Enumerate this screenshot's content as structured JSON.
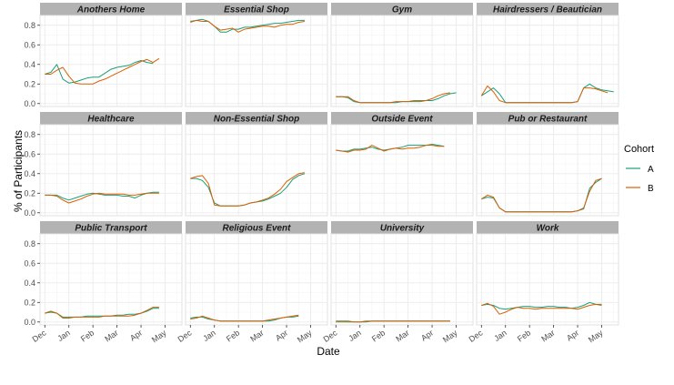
{
  "chart_data": {
    "type": "line",
    "xlabel": "Date",
    "ylabel": "% of Participants",
    "ylim": [
      -0.03,
      0.9
    ],
    "y_ticks": [
      "0.0",
      "0.2",
      "0.4",
      "0.6",
      "0.8"
    ],
    "y_tick_values": [
      0,
      0.2,
      0.4,
      0.6,
      0.8
    ],
    "x_ticks": [
      "Dec",
      "Jan",
      "Feb",
      "Mar",
      "Apr",
      "May"
    ],
    "x_tick_values": [
      0,
      1,
      2,
      3,
      4,
      5
    ],
    "xlim": [
      -0.2,
      5.7
    ],
    "grid": true,
    "legend": {
      "title": "Cohort",
      "position": "right",
      "entries": [
        {
          "name": "A",
          "color": "#1b9e77"
        },
        {
          "name": "B",
          "color": "#d95f02"
        }
      ]
    },
    "x": [
      0,
      0.25,
      0.5,
      0.75,
      1,
      1.25,
      1.5,
      1.75,
      2,
      2.25,
      2.5,
      2.75,
      3,
      3.25,
      3.5,
      3.75,
      4,
      4.25,
      4.5,
      4.75,
      5,
      5.25,
      5.5
    ],
    "panels": [
      {
        "title": "Anothers Home",
        "series": [
          {
            "name": "A",
            "values": [
              0.3,
              0.32,
              0.4,
              0.25,
              0.21,
              0.22,
              0.24,
              0.26,
              0.27,
              0.27,
              0.31,
              0.35,
              0.37,
              0.38,
              0.39,
              0.42,
              0.44,
              0.42,
              0.41
            ]
          },
          {
            "name": "B",
            "values": [
              0.3,
              0.3,
              0.34,
              0.37,
              0.28,
              0.21,
              0.2,
              0.2,
              0.2,
              0.23,
              0.25,
              0.28,
              0.31,
              0.34,
              0.37,
              0.4,
              0.43,
              0.45,
              0.42,
              0.46
            ]
          }
        ]
      },
      {
        "title": "Essential Shop",
        "series": [
          {
            "name": "A",
            "values": [
              0.84,
              0.85,
              0.86,
              0.84,
              0.79,
              0.73,
              0.73,
              0.76,
              0.76,
              0.78,
              0.78,
              0.79,
              0.8,
              0.81,
              0.82,
              0.82,
              0.83,
              0.84,
              0.85,
              0.85
            ]
          },
          {
            "name": "B",
            "values": [
              0.83,
              0.85,
              0.84,
              0.84,
              0.79,
              0.75,
              0.76,
              0.77,
              0.73,
              0.76,
              0.77,
              0.78,
              0.79,
              0.79,
              0.78,
              0.8,
              0.81,
              0.81,
              0.83,
              0.84
            ]
          }
        ]
      },
      {
        "title": "Gym",
        "series": [
          {
            "name": "A",
            "values": [
              0.07,
              0.07,
              0.06,
              0.02,
              0.01,
              0.01,
              0.01,
              0.01,
              0.01,
              0.01,
              0.01,
              0.02,
              0.02,
              0.02,
              0.02,
              0.03,
              0.03,
              0.05,
              0.08,
              0.1,
              0.11
            ]
          },
          {
            "name": "B",
            "values": [
              0.07,
              0.07,
              0.07,
              0.03,
              0.01,
              0.01,
              0.01,
              0.01,
              0.01,
              0.01,
              0.02,
              0.02,
              0.02,
              0.03,
              0.03,
              0.03,
              0.05,
              0.08,
              0.1,
              0.11
            ]
          }
        ]
      },
      {
        "title": "Hairdressers / Beautician",
        "series": [
          {
            "name": "A",
            "values": [
              0.08,
              0.12,
              0.16,
              0.1,
              0.01,
              0.01,
              0.01,
              0.01,
              0.01,
              0.01,
              0.01,
              0.01,
              0.01,
              0.01,
              0.01,
              0.01,
              0.02,
              0.16,
              0.2,
              0.16,
              0.14,
              0.13,
              0.12
            ]
          },
          {
            "name": "B",
            "values": [
              0.08,
              0.18,
              0.12,
              0.03,
              0.01,
              0.01,
              0.01,
              0.01,
              0.01,
              0.01,
              0.01,
              0.01,
              0.01,
              0.01,
              0.01,
              0.01,
              0.02,
              0.16,
              0.16,
              0.15,
              0.13,
              0.11
            ]
          }
        ]
      },
      {
        "title": "Healthcare",
        "series": [
          {
            "name": "A",
            "values": [
              0.18,
              0.18,
              0.18,
              0.15,
              0.13,
              0.15,
              0.17,
              0.19,
              0.2,
              0.19,
              0.18,
              0.18,
              0.18,
              0.17,
              0.17,
              0.15,
              0.18,
              0.2,
              0.21,
              0.21
            ]
          },
          {
            "name": "B",
            "values": [
              0.18,
              0.18,
              0.17,
              0.13,
              0.1,
              0.12,
              0.14,
              0.17,
              0.19,
              0.2,
              0.19,
              0.19,
              0.19,
              0.19,
              0.18,
              0.18,
              0.19,
              0.2,
              0.2,
              0.2
            ]
          }
        ]
      },
      {
        "title": "Non-Essential Shop",
        "series": [
          {
            "name": "A",
            "values": [
              0.35,
              0.35,
              0.33,
              0.26,
              0.1,
              0.07,
              0.07,
              0.07,
              0.07,
              0.08,
              0.1,
              0.11,
              0.12,
              0.14,
              0.17,
              0.2,
              0.26,
              0.34,
              0.38,
              0.4
            ]
          },
          {
            "name": "B",
            "values": [
              0.35,
              0.37,
              0.38,
              0.3,
              0.08,
              0.07,
              0.07,
              0.07,
              0.07,
              0.08,
              0.1,
              0.11,
              0.13,
              0.15,
              0.19,
              0.24,
              0.32,
              0.36,
              0.4,
              0.41
            ]
          }
        ]
      },
      {
        "title": "Outside Event",
        "series": [
          {
            "name": "A",
            "values": [
              0.64,
              0.63,
              0.63,
              0.65,
              0.65,
              0.66,
              0.67,
              0.65,
              0.64,
              0.65,
              0.66,
              0.67,
              0.69,
              0.69,
              0.69,
              0.69,
              0.7,
              0.69,
              0.68
            ]
          },
          {
            "name": "B",
            "values": [
              0.64,
              0.63,
              0.62,
              0.64,
              0.64,
              0.65,
              0.69,
              0.66,
              0.63,
              0.65,
              0.66,
              0.65,
              0.66,
              0.66,
              0.67,
              0.69,
              0.69,
              0.68,
              0.68
            ]
          }
        ]
      },
      {
        "title": "Pub or Restaurant",
        "series": [
          {
            "name": "A",
            "values": [
              0.14,
              0.16,
              0.15,
              0.05,
              0.01,
              0.01,
              0.01,
              0.01,
              0.01,
              0.01,
              0.01,
              0.01,
              0.01,
              0.01,
              0.01,
              0.01,
              0.02,
              0.04,
              0.25,
              0.31,
              0.35
            ]
          },
          {
            "name": "B",
            "values": [
              0.14,
              0.18,
              0.16,
              0.05,
              0.01,
              0.01,
              0.01,
              0.01,
              0.01,
              0.01,
              0.01,
              0.01,
              0.01,
              0.01,
              0.01,
              0.01,
              0.02,
              0.05,
              0.22,
              0.33,
              0.35
            ]
          }
        ]
      },
      {
        "title": "Public Transport",
        "series": [
          {
            "name": "A",
            "values": [
              0.09,
              0.1,
              0.09,
              0.05,
              0.05,
              0.05,
              0.05,
              0.06,
              0.06,
              0.06,
              0.06,
              0.06,
              0.07,
              0.07,
              0.08,
              0.08,
              0.09,
              0.11,
              0.14,
              0.14
            ]
          },
          {
            "name": "B",
            "values": [
              0.09,
              0.11,
              0.09,
              0.04,
              0.04,
              0.05,
              0.05,
              0.05,
              0.05,
              0.05,
              0.06,
              0.06,
              0.06,
              0.06,
              0.06,
              0.07,
              0.09,
              0.12,
              0.15,
              0.15
            ]
          }
        ]
      },
      {
        "title": "Religious Event",
        "series": [
          {
            "name": "A",
            "values": [
              0.04,
              0.05,
              0.05,
              0.03,
              0.02,
              0.01,
              0.01,
              0.01,
              0.01,
              0.01,
              0.01,
              0.01,
              0.01,
              0.01,
              0.02,
              0.04,
              0.05,
              0.05,
              0.06
            ]
          },
          {
            "name": "B",
            "values": [
              0.03,
              0.04,
              0.06,
              0.04,
              0.02,
              0.01,
              0.01,
              0.01,
              0.01,
              0.01,
              0.01,
              0.01,
              0.01,
              0.02,
              0.03,
              0.04,
              0.05,
              0.06,
              0.07
            ]
          }
        ]
      },
      {
        "title": "University",
        "series": [
          {
            "name": "A",
            "values": [
              0.01,
              0.01,
              0.01,
              0.0,
              0.0,
              0.0,
              0.01,
              0.01,
              0.01,
              0.01,
              0.01,
              0.01,
              0.01,
              0.01,
              0.01,
              0.01,
              0.01,
              0.01,
              0.01,
              0.01
            ]
          },
          {
            "name": "B",
            "values": [
              0.0,
              0.0,
              0.0,
              0.0,
              0.0,
              0.01,
              0.01,
              0.01,
              0.01,
              0.01,
              0.01,
              0.01,
              0.01,
              0.01,
              0.01,
              0.01,
              0.01,
              0.01,
              0.01,
              0.01
            ]
          }
        ]
      },
      {
        "title": "Work",
        "series": [
          {
            "name": "A",
            "values": [
              0.17,
              0.18,
              0.17,
              0.14,
              0.13,
              0.14,
              0.15,
              0.16,
              0.16,
              0.15,
              0.15,
              0.16,
              0.16,
              0.15,
              0.15,
              0.14,
              0.15,
              0.17,
              0.2,
              0.18,
              0.18
            ]
          },
          {
            "name": "B",
            "values": [
              0.17,
              0.19,
              0.16,
              0.08,
              0.1,
              0.13,
              0.15,
              0.14,
              0.14,
              0.13,
              0.14,
              0.14,
              0.14,
              0.14,
              0.14,
              0.14,
              0.13,
              0.15,
              0.17,
              0.18,
              0.17
            ]
          }
        ]
      }
    ]
  }
}
